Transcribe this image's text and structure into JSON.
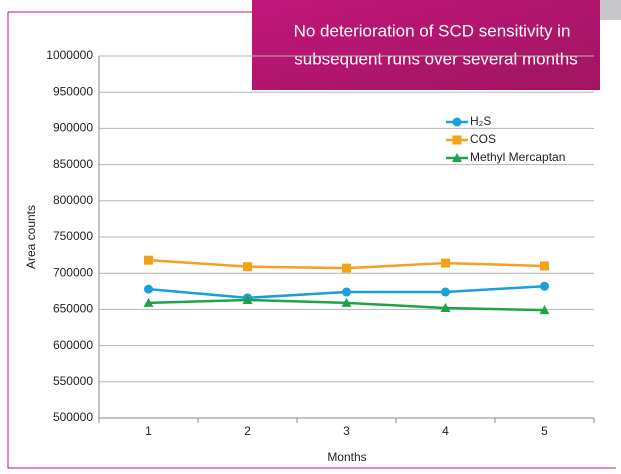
{
  "chart_data": {
    "type": "line",
    "annotation": [
      "No deterioration of SCD sensitivity in",
      "subsequent runs over several months"
    ],
    "x_label": "Months",
    "y_label": "Area counts",
    "categories": [
      "1",
      "2",
      "3",
      "4",
      "5"
    ],
    "series": [
      {
        "name": "H₂S",
        "color": "#1a9fd9",
        "marker": "circle",
        "values": [
          678000,
          666000,
          674000,
          674000,
          682000
        ]
      },
      {
        "name": "COS",
        "color": "#f5a11c",
        "marker": "square",
        "values": [
          718000,
          709000,
          707000,
          714000,
          710000
        ]
      },
      {
        "name": "Methyl Mercaptan",
        "color": "#1ea34b",
        "marker": "triangle",
        "values": [
          659000,
          663000,
          659000,
          652000,
          649000
        ]
      }
    ],
    "ylim": [
      500000,
      1000000
    ],
    "yticks": [
      500000,
      550000,
      600000,
      650000,
      700000,
      750000,
      800000,
      850000,
      900000,
      950000,
      1000000
    ],
    "grid": true,
    "legend": "top-right"
  }
}
